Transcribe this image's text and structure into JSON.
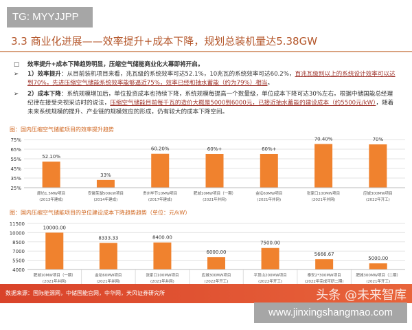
{
  "watermark_tg": "TG: MYYJJPP",
  "title": "3.3 商业化进展——效率提升+成本下降，规划总装机量达5.38GW",
  "bullets": [
    {
      "marker": "□",
      "bold": "效率提升+成本下降趋势明显，压缩空气储能商业化大幕即将开启。",
      "plain": "",
      "underlined": "",
      "tail": ""
    },
    {
      "marker": "➢",
      "bold": "1）效率提升",
      "plain": "：从目前装机项目来看，兆瓦级的系统效率可达52.1%，10兆瓦的系统效率可达60.2%，",
      "underlined": "百兆瓦级别以上的系统设计效率可以达到70%，先进压缩空气储能系统效率能够逼近75%，效率已经和抽水蓄能（约为79%）相当",
      "tail": "。"
    },
    {
      "marker": "➢",
      "bold": "2）成本下降",
      "plain": "：系统规模增加后，单位投资成本也持续下降，系统规模每提高一个数量级，单位成本下降可达30%左右。根据中储国能总经理纪律在接受央视采访时的说法，",
      "underlined": "压缩空气储能目前每千瓦的造价大概是5000到6000元，已接近抽水蓄能的建设成本（约5500元/kW）",
      "tail": "，随着未来系统规模的提升、产业链的规模效应的形成，仍有较大的成本下降空间。"
    }
  ],
  "colors": {
    "bar": "#f0822e",
    "accent": "#b4562a",
    "footer": "#e0512f"
  },
  "chart_data": [
    {
      "type": "bar",
      "title": "图：国内压缩空气储能项目的效率提升趋势",
      "categories": [
        [
          "廊坊1.5MW项目",
          "(2013年建成)"
        ],
        [
          "安徽芜湖500kW项目",
          "(2014年建成)"
        ],
        [
          "贵州毕节10MW项目",
          "(2017年建成)"
        ],
        [
          "肥城10MW项目（一期）",
          "(2021年并网)"
        ],
        [
          "金坛60MW项目",
          "(2021年并网)"
        ],
        [
          "张家口100MW项目",
          "(2021年并网)"
        ],
        [
          "应城300MW项目",
          "(2022年开工)"
        ]
      ],
      "values": [
        52.1,
        33,
        60.2,
        60,
        60,
        70.4,
        70
      ],
      "data_labels": [
        "52.10%",
        "33%",
        "60.20%",
        "60%+",
        "60%+",
        "70.40%",
        "70%"
      ],
      "yticks": [
        "25%",
        "35%",
        "45%",
        "55%",
        "65%",
        "75%"
      ],
      "ylim": [
        25,
        75
      ],
      "grid": true
    },
    {
      "type": "bar",
      "title": "图：国内压缩空气储能项目的单位建设成本下降趋势趋势（单位：元/kW）",
      "categories": [
        [
          "肥城10MW项目（一期）",
          "(2021年并网)"
        ],
        [
          "金坛60MW项目",
          "(2021年并网)"
        ],
        [
          "张家口100MW项目",
          "(2021年并网)"
        ],
        [
          "应城300MW项目",
          "(2022年开工)"
        ],
        [
          "平顶山200MW项目",
          "(2022年开工)"
        ],
        [
          "泰安2*300MW项目",
          "(2022年完成可研二期)"
        ],
        [
          "肥城300MW项目（二期）",
          "(2021年开工)"
        ]
      ],
      "values": [
        10000,
        8333.33,
        8400,
        6000,
        7500,
        5666.67,
        5000
      ],
      "data_labels": [
        "10000.00",
        "8333.33",
        "8400.00",
        "6000.00",
        "7500.00",
        "5666.67",
        "5000.00"
      ],
      "yticks": [
        "4000",
        "5500",
        "7000",
        "8500",
        "10000",
        "11500"
      ],
      "ylim": [
        4000,
        11500
      ],
      "grid": true
    }
  ],
  "footer": {
    "source": "数据来源：国际能源网，中储国能官网，中华网，天风证券研究所",
    "watermark": "头条 @未来智库"
  },
  "url_watermark": "www.jinxingshangmao.com"
}
